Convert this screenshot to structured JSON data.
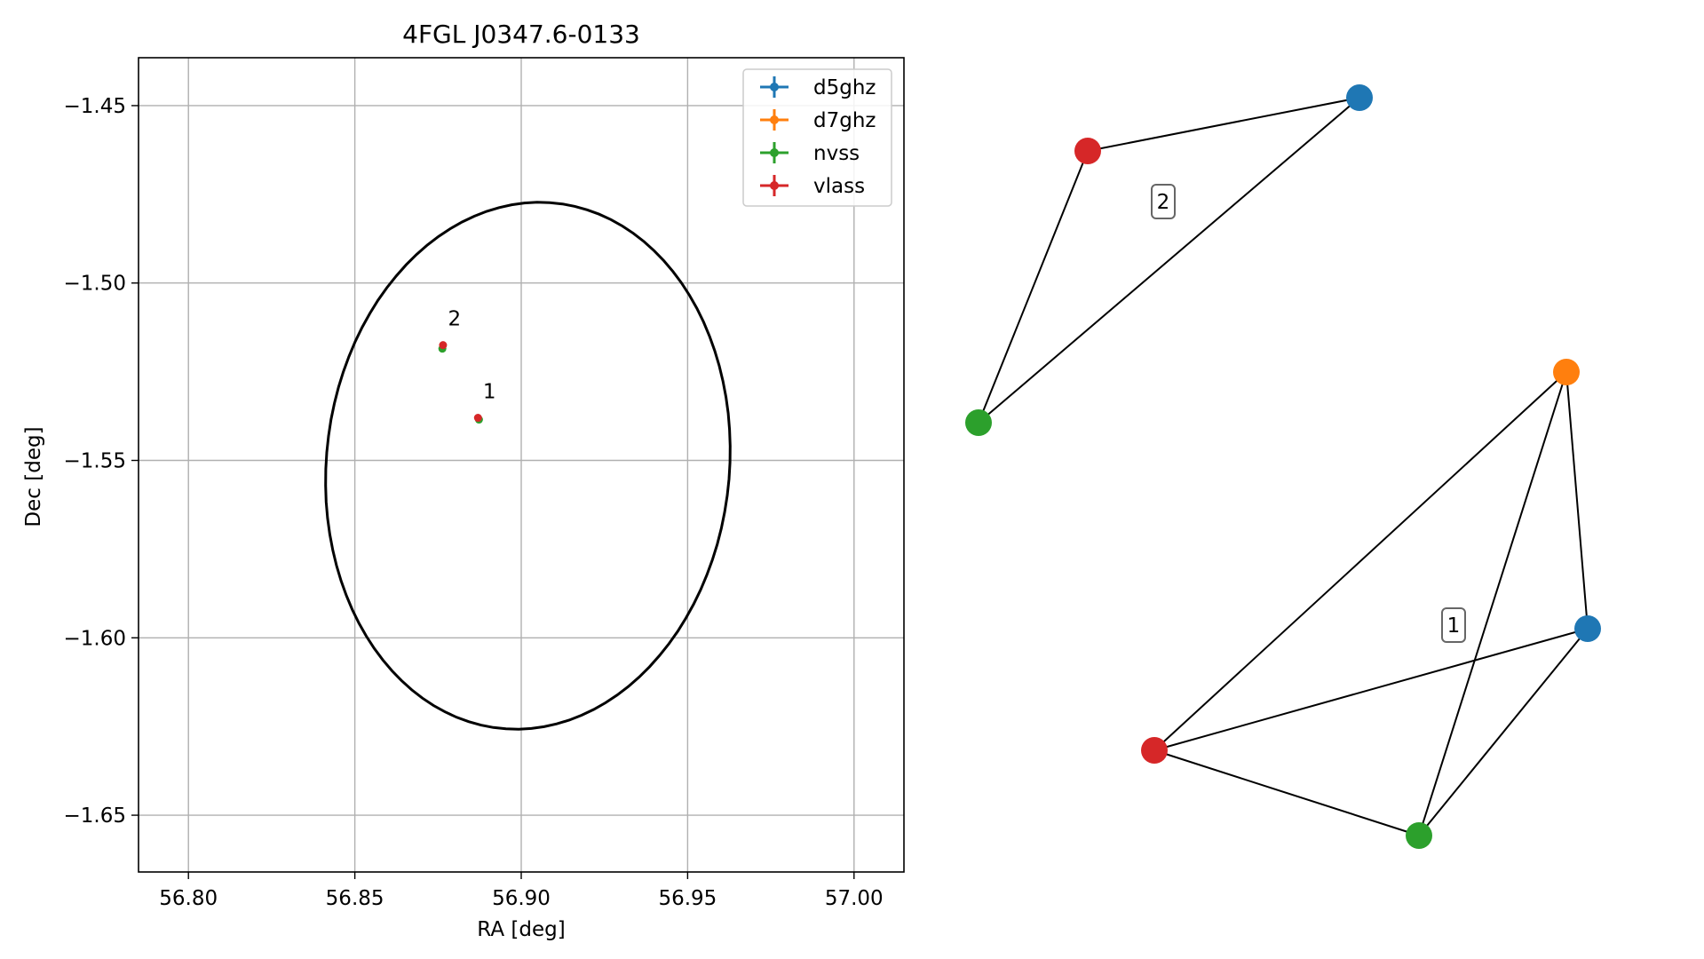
{
  "chart_data": [
    {
      "type": "scatter",
      "title": "4FGL J0347.6-0133",
      "xlabel": "RA [deg]",
      "ylabel": "Dec [deg]",
      "xlim": [
        56.785,
        57.015
      ],
      "ylim": [
        -1.666,
        -1.4365
      ],
      "xticks": [
        56.8,
        56.85,
        56.9,
        56.95,
        57.0
      ],
      "xtick_labels": [
        "56.80",
        "56.85",
        "56.90",
        "56.95",
        "57.00"
      ],
      "yticks": [
        -1.45,
        -1.5,
        -1.55,
        -1.6,
        -1.65
      ],
      "ytick_labels": [
        "−1.45",
        "−1.50",
        "−1.55",
        "−1.60",
        "−1.65"
      ],
      "grid": true,
      "legend_position": "top-right",
      "series": [
        {
          "name": "d5ghz",
          "color": "#1f77b4",
          "points": []
        },
        {
          "name": "d7ghz",
          "color": "#ff7f0e",
          "points": []
        },
        {
          "name": "nvss",
          "color": "#2ca02c",
          "points": [
            {
              "x": 56.8763,
              "y": -1.5185
            },
            {
              "x": 56.8873,
              "y": -1.5385
            }
          ]
        },
        {
          "name": "vlass",
          "color": "#d62728",
          "points": [
            {
              "x": 56.8765,
              "y": -1.5175
            },
            {
              "x": 56.887,
              "y": -1.538
            }
          ]
        }
      ],
      "annotations": [
        {
          "text": "2",
          "x": 56.878,
          "y": -1.512
        },
        {
          "text": "1",
          "x": 56.8885,
          "y": -1.5325
        }
      ],
      "ellipse": {
        "center_ra": 56.902,
        "center_dec": -1.5515,
        "ra_radius": 0.0605,
        "dec_radius": 0.0745,
        "angle_deg": -8,
        "color": "#000000"
      }
    },
    {
      "type": "network",
      "groups": [
        {
          "label": "2",
          "nodes": [
            {
              "id": "d5ghz",
              "color": "#1f77b4"
            },
            {
              "id": "vlass",
              "color": "#d62728"
            },
            {
              "id": "nvss",
              "color": "#2ca02c"
            }
          ],
          "edges": [
            [
              "vlass",
              "d5ghz"
            ],
            [
              "vlass",
              "nvss"
            ],
            [
              "d5ghz",
              "nvss"
            ]
          ]
        },
        {
          "label": "1",
          "nodes": [
            {
              "id": "d7ghz",
              "color": "#ff7f0e"
            },
            {
              "id": "d5ghz",
              "color": "#1f77b4"
            },
            {
              "id": "vlass",
              "color": "#d62728"
            },
            {
              "id": "nvss",
              "color": "#2ca02c"
            }
          ],
          "edges": [
            [
              "d7ghz",
              "d5ghz"
            ],
            [
              "d7ghz",
              "vlass"
            ],
            [
              "d7ghz",
              "nvss"
            ],
            [
              "d5ghz",
              "vlass"
            ],
            [
              "d5ghz",
              "nvss"
            ],
            [
              "vlass",
              "nvss"
            ]
          ]
        }
      ]
    }
  ]
}
